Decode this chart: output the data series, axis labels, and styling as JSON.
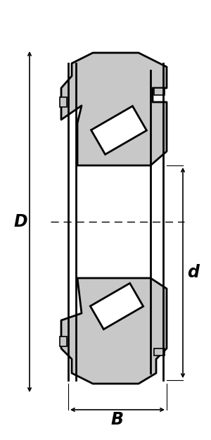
{
  "fig_width": 3.0,
  "fig_height": 6.25,
  "dpi": 100,
  "bg_color": "#ffffff",
  "gray_fill": "#c8c8c8",
  "black_line": "#000000",
  "white_fill": "#ffffff",
  "lw_main": 2.0,
  "lw_dim": 1.2,
  "label_D": "D",
  "label_d": "d",
  "label_B": "B",
  "font_size_labels": 17,
  "font_style": "italic",
  "font_weight": "bold"
}
